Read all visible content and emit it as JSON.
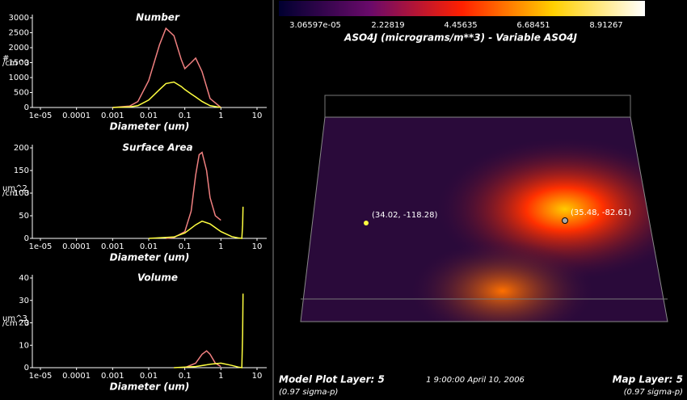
{
  "chart_data": [
    {
      "type": "line",
      "title": "Number",
      "x_label": "Diameter (um)",
      "y_label": [
        "#",
        "/cm^3"
      ],
      "xscale": "log",
      "xlim": [
        1e-05,
        10
      ],
      "xticks": [
        {
          "value": 1e-05,
          "label": "1e-05"
        },
        0.0001,
        0.001,
        0.01,
        0.1,
        1,
        10
      ],
      "ylim": [
        0,
        3000
      ],
      "yticks": [
        0,
        500,
        1000,
        1500,
        2000,
        2500,
        3000
      ],
      "series": [
        {
          "color": "#f08080",
          "x": [
            0.001,
            0.003,
            0.005,
            0.01,
            0.02,
            0.03,
            0.05,
            0.08,
            0.1,
            0.15,
            0.2,
            0.3,
            0.5,
            1
          ],
          "values": [
            0,
            50,
            200,
            900,
            2100,
            2650,
            2400,
            1600,
            1300,
            1500,
            1650,
            1200,
            300,
            0
          ]
        },
        {
          "color": "#ffff40",
          "x": [
            0.001,
            0.003,
            0.005,
            0.01,
            0.02,
            0.03,
            0.05,
            0.08,
            0.1,
            0.15,
            0.2,
            0.3,
            0.5,
            1
          ],
          "values": [
            0,
            20,
            60,
            250,
            600,
            800,
            850,
            700,
            600,
            450,
            350,
            200,
            60,
            0
          ]
        }
      ]
    },
    {
      "type": "line",
      "title": "Surface Area",
      "x_label": "Diameter (um)",
      "y_label": [
        "um^2",
        "/cm^3"
      ],
      "xscale": "log",
      "xlim": [
        1e-05,
        10
      ],
      "xticks": [
        {
          "value": 1e-05,
          "label": "1e-05"
        },
        0.0001,
        0.001,
        0.01,
        0.1,
        1,
        10
      ],
      "ylim": [
        0,
        200
      ],
      "yticks": [
        0,
        50,
        100,
        150,
        200
      ],
      "series": [
        {
          "color": "#f08080",
          "x": [
            0.03,
            0.05,
            0.1,
            0.15,
            0.2,
            0.25,
            0.3,
            0.4,
            0.5,
            0.7,
            1
          ],
          "values": [
            0,
            2,
            15,
            60,
            140,
            185,
            190,
            150,
            90,
            50,
            40
          ]
        },
        {
          "color": "#ffff40",
          "x": [
            0.01,
            0.05,
            0.1,
            0.2,
            0.3,
            0.5,
            1,
            2,
            3,
            3.8,
            4,
            4.1
          ],
          "values": [
            0,
            3,
            12,
            30,
            38,
            32,
            15,
            4,
            1,
            0,
            30,
            70
          ]
        }
      ]
    },
    {
      "type": "line",
      "title": "Volume",
      "x_label": "Diameter (um)",
      "y_label": [
        "um^3",
        "/cm^3"
      ],
      "xscale": "log",
      "xlim": [
        1e-05,
        10
      ],
      "xticks": [
        {
          "value": 1e-05,
          "label": "1e-05"
        },
        0.0001,
        0.001,
        0.01,
        0.1,
        1,
        10
      ],
      "ylim": [
        0,
        40
      ],
      "yticks": [
        0,
        10,
        20,
        30,
        40
      ],
      "series": [
        {
          "color": "#f08080",
          "x": [
            0.1,
            0.2,
            0.3,
            0.4,
            0.5,
            0.7,
            1
          ],
          "values": [
            0,
            2,
            6,
            7.5,
            6,
            2,
            0.5
          ]
        },
        {
          "color": "#ffff40",
          "x": [
            0.05,
            0.2,
            0.5,
            1,
            2,
            3,
            3.8,
            4,
            4.1
          ],
          "values": [
            0,
            0.5,
            1.5,
            2,
            1,
            0.3,
            0,
            15,
            33
          ]
        }
      ]
    }
  ],
  "colorbar": {
    "labels": [
      "3.06597e-05",
      "2.22819",
      "4.45635",
      "6.68451",
      "8.91267"
    ],
    "title": "ASO4J (micrograms/m**3) - Variable ASO4J"
  },
  "map": {
    "markers": [
      {
        "label": "(34.02, -118.28)"
      },
      {
        "label": "(35.48, -82.61)"
      }
    ]
  },
  "footer": {
    "left": "Model Plot Layer: 5",
    "left_sub": "(0.97 sigma-p)",
    "center": "1 9:00:00 April 10, 2006",
    "right": "Map Layer: 5",
    "right_sub": "(0.97 sigma-p)"
  }
}
